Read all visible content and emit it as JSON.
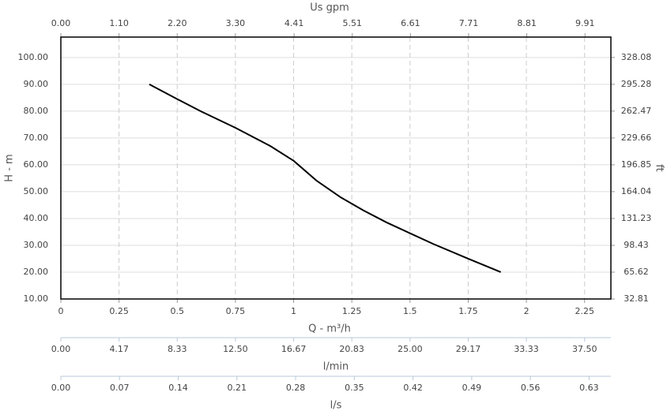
{
  "chart_data": {
    "type": "line",
    "x_label": "Q - m³/h",
    "y_label": "H - m",
    "y2_label": "ft",
    "xlim": [
      0,
      2.363
    ],
    "xticks": [
      0,
      0.25,
      0.5,
      0.75,
      1,
      1.25,
      1.5,
      1.75,
      2,
      2.25
    ],
    "ylim": [
      10,
      107.6
    ],
    "yticks": [
      {
        "value": 10,
        "label": "10.00"
      },
      {
        "value": 20,
        "label": "20.00"
      },
      {
        "value": 30,
        "label": "30.00"
      },
      {
        "value": 40,
        "label": "40.00"
      },
      {
        "value": 50,
        "label": "50.00"
      },
      {
        "value": 60,
        "label": "60.00"
      },
      {
        "value": 70,
        "label": "70.00"
      },
      {
        "value": 80,
        "label": "80.00"
      },
      {
        "value": 90,
        "label": "90.00"
      },
      {
        "value": 100,
        "label": "100.00"
      }
    ],
    "y2lim": [
      32.81,
      353.0
    ],
    "y2ticks": [
      32.81,
      65.62,
      98.43,
      131.23,
      164.04,
      196.85,
      229.66,
      262.47,
      295.28,
      328.08
    ],
    "top_axis": {
      "label": "Us gpm",
      "lim": [
        0,
        10.4
      ],
      "ticks": [
        {
          "value": 0,
          "label": "0.00"
        },
        {
          "value": 1.1,
          "label": "1.10"
        },
        {
          "value": 2.2,
          "label": "2.20"
        },
        {
          "value": 3.3,
          "label": "3.30"
        },
        4.41,
        5.51,
        6.61,
        7.71,
        8.81,
        9.91
      ]
    },
    "extra_axes": [
      {
        "label": "l/min",
        "lim": [
          0,
          39.38
        ],
        "ticks": [
          {
            "value": 0,
            "label": "0.00"
          },
          4.17,
          8.33,
          {
            "value": 12.5,
            "label": "12.50"
          },
          16.67,
          20.83,
          {
            "value": 25,
            "label": "25.00"
          },
          29.17,
          33.33,
          {
            "value": 37.5,
            "label": "37.50"
          }
        ]
      },
      {
        "label": "l/s",
        "lim": [
          0,
          0.656
        ],
        "ticks": [
          {
            "value": 0,
            "label": "0.00"
          },
          0.07,
          0.14,
          0.21,
          0.28,
          0.35,
          0.42,
          0.49,
          0.56,
          0.63
        ]
      }
    ],
    "grid": true,
    "x": [
      0.38,
      0.5,
      0.6,
      0.75,
      0.9,
      1.0,
      1.1,
      1.2,
      1.3,
      1.4,
      1.5,
      1.6,
      1.75,
      1.89
    ],
    "series": [
      {
        "color": "#000000",
        "values": [
          90,
          84.5,
          80,
          73.8,
          67,
          61.5,
          54,
          48,
          43,
          38.5,
          34.5,
          30.5,
          25,
          20
        ]
      }
    ]
  }
}
